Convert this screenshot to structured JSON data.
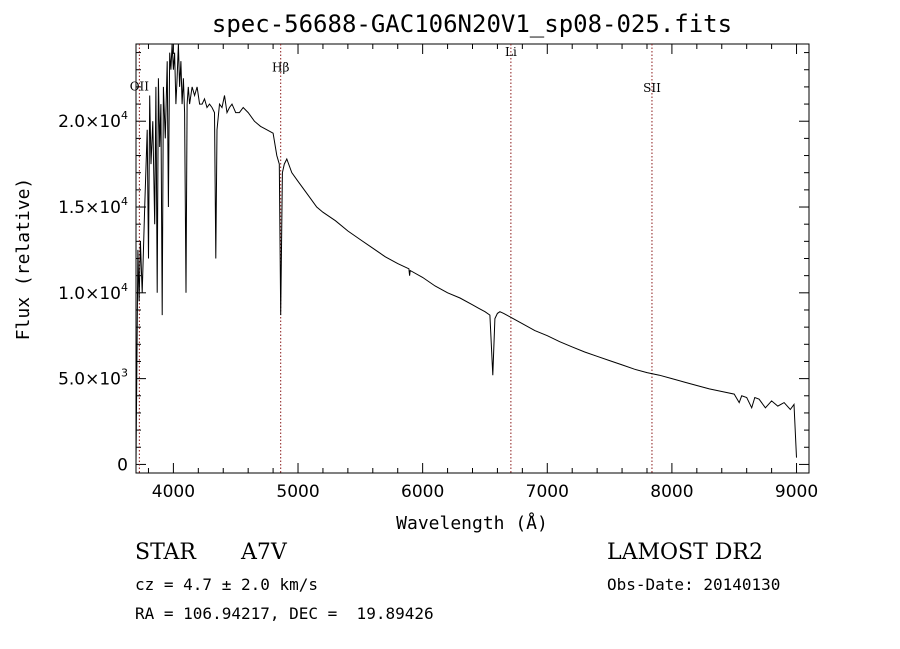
{
  "chart_data": {
    "type": "line",
    "title": "spec-56688-GAC106N20V1_sp08-025.fits",
    "xlabel": "Wavelength (Å)",
    "ylabel": "Flux (relative)",
    "xlim": [
      3700,
      9100
    ],
    "ylim": [
      -500,
      24500
    ],
    "x_ticks": [
      4000,
      5000,
      6000,
      7000,
      8000,
      9000
    ],
    "y_ticks": [
      {
        "value": 0,
        "mantissa": "0",
        "exp": ""
      },
      {
        "value": 5000,
        "mantissa": "5.0×10",
        "exp": "3"
      },
      {
        "value": 10000,
        "mantissa": "1.0×10",
        "exp": "4"
      },
      {
        "value": 15000,
        "mantissa": "1.5×10",
        "exp": "4"
      },
      {
        "value": 20000,
        "mantissa": "2.0×10",
        "exp": "4"
      }
    ],
    "lines": [
      {
        "label": "OII",
        "x": 3727,
        "label_flux": 21800
      },
      {
        "label": "Hβ",
        "x": 4861,
        "label_flux": 22900
      },
      {
        "label": "Li",
        "x": 6708,
        "label_flux": 23800
      },
      {
        "label": "SII",
        "x": 7840,
        "label_flux": 21700
      }
    ],
    "series": [
      {
        "x": [
          3700,
          3715,
          3725,
          3735,
          3750,
          3770,
          3790,
          3800,
          3810,
          3820,
          3835,
          3850,
          3860,
          3870,
          3880,
          3890,
          3900,
          3910,
          3920,
          3935,
          3950,
          3960,
          3965,
          3970,
          3980,
          3990,
          4000,
          4010,
          4020,
          4030,
          4040,
          4050,
          4060,
          4070,
          4080,
          4090,
          4101,
          4110,
          4120,
          4130,
          4150,
          4170,
          4190,
          4210,
          4230,
          4250,
          4270,
          4290,
          4310,
          4330,
          4340,
          4350,
          4370,
          4390,
          4410,
          4430,
          4450,
          4470,
          4500,
          4530,
          4560,
          4600,
          4650,
          4700,
          4750,
          4800,
          4830,
          4850,
          4861,
          4875,
          4890,
          4910,
          4950,
          5000,
          5050,
          5100,
          5150,
          5200,
          5300,
          5400,
          5500,
          5600,
          5700,
          5800,
          5890,
          5895,
          5900,
          6000,
          6100,
          6200,
          6300,
          6400,
          6450,
          6500,
          6540,
          6563,
          6580,
          6600,
          6620,
          6650,
          6700,
          6800,
          6900,
          7000,
          7100,
          7200,
          7300,
          7400,
          7500,
          7600,
          7700,
          7800,
          7900,
          8000,
          8100,
          8200,
          8300,
          8400,
          8500,
          8540,
          8560,
          8600,
          8640,
          8665,
          8700,
          8750,
          8800,
          8850,
          8900,
          8950,
          8980,
          9000
        ],
        "y": [
          0,
          12500,
          9500,
          13000,
          10000,
          15000,
          19500,
          12000,
          21500,
          17500,
          20000,
          14000,
          22000,
          10000,
          22500,
          18500,
          21000,
          8700,
          22000,
          19000,
          23500,
          15000,
          19500,
          24000,
          23000,
          24500,
          23000,
          24000,
          21000,
          22500,
          24500,
          22000,
          23500,
          21000,
          22500,
          20500,
          10000,
          21000,
          22000,
          21000,
          22000,
          21500,
          22000,
          21000,
          21000,
          21300,
          20800,
          21000,
          20800,
          20500,
          12000,
          19500,
          21000,
          20800,
          21500,
          20500,
          20800,
          21000,
          20500,
          20500,
          20800,
          20500,
          20000,
          19700,
          19500,
          19300,
          18000,
          17500,
          8700,
          17000,
          17500,
          17800,
          17000,
          16500,
          16000,
          15500,
          15000,
          14700,
          14200,
          13600,
          13100,
          12600,
          12100,
          11700,
          11400,
          11000,
          11300,
          10900,
          10400,
          10000,
          9700,
          9300,
          9100,
          8900,
          8700,
          5200,
          8500,
          8800,
          8900,
          8800,
          8600,
          8200,
          7800,
          7500,
          7150,
          6850,
          6550,
          6300,
          6050,
          5800,
          5550,
          5350,
          5200,
          5000,
          4800,
          4600,
          4400,
          4250,
          4100,
          3600,
          4000,
          3900,
          3300,
          3900,
          3800,
          3300,
          3700,
          3400,
          3600,
          3200,
          3500,
          400
        ]
      }
    ]
  },
  "info": {
    "star_label": "STAR",
    "spectral_type": "A7V",
    "cz": "cz = 4.7 ± 2.0 km/s",
    "radec": "RA = 106.94217, DEC =  19.89426",
    "survey": "LAMOST DR2",
    "obs_date": "Obs-Date: 20140130"
  }
}
